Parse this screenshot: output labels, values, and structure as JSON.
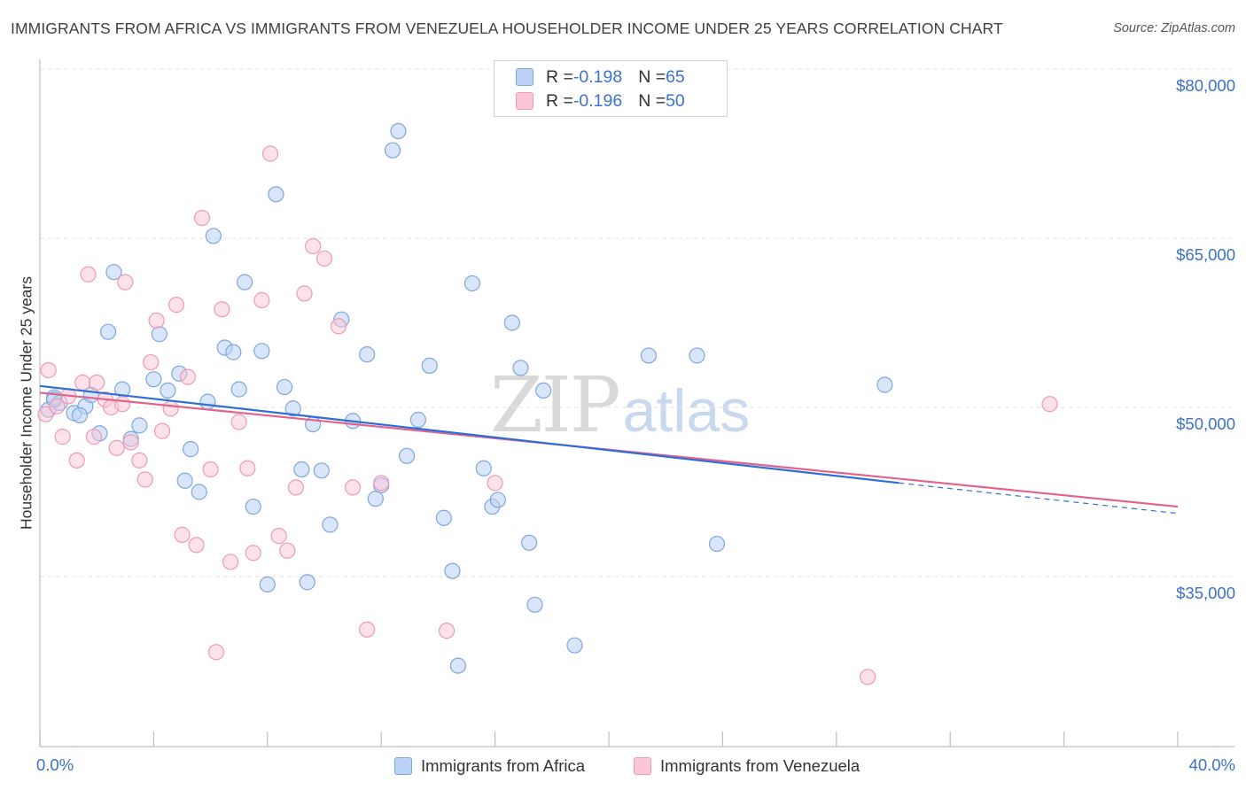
{
  "title": "IMMIGRANTS FROM AFRICA VS IMMIGRANTS FROM VENEZUELA HOUSEHOLDER INCOME UNDER 25 YEARS CORRELATION CHART",
  "source": "Source: ZipAtlas.com",
  "watermark": {
    "zip": "ZIP",
    "atlas": "atlas"
  },
  "legend_top": [
    {
      "r_label": "R = ",
      "r_value": "-0.198",
      "n_label": "N = ",
      "n_value": "65"
    },
    {
      "r_label": "R = ",
      "r_value": "-0.196",
      "n_label": "N = ",
      "n_value": "50"
    }
  ],
  "colors": {
    "africa_fill": "#b9d2f6",
    "africa_stroke": "#7ea6de",
    "africa_line": "#2d6fd3",
    "venezuela_fill": "#fbc6d6",
    "venezuela_stroke": "#ee9ab4",
    "venezuela_line": "#e2648e",
    "tick_text": "#3c72c8",
    "grid": "#e3e3e3"
  },
  "chart_data": {
    "type": "scatter",
    "title": "IMMIGRANTS FROM AFRICA VS IMMIGRANTS FROM VENEZUELA HOUSEHOLDER INCOME UNDER 25 YEARS CORRELATION CHART",
    "xlabel": "",
    "ylabel": "Householder Income Under 25 years",
    "xlim": [
      0,
      40
    ],
    "ylim": [
      20000,
      83000
    ],
    "x_tick_labels": [
      "0.0%",
      "40.0%"
    ],
    "y_ticks": [
      35000,
      50000,
      65000,
      80000
    ],
    "y_tick_labels": [
      "$35,000",
      "$50,000",
      "$65,000",
      "$80,000"
    ],
    "grid": true,
    "legend_position": "top-center",
    "series": [
      {
        "name": "Immigrants from Africa",
        "r": -0.198,
        "n": 65,
        "trend": {
          "x": [
            0,
            30.2
          ],
          "y": [
            51900,
            43300
          ],
          "dashed_to": [
            40,
            40600
          ]
        },
        "points": [
          [
            0.3,
            49800
          ],
          [
            0.5,
            50900
          ],
          [
            0.7,
            50400
          ],
          [
            1.2,
            49500
          ],
          [
            1.6,
            50100
          ],
          [
            1.8,
            51100
          ],
          [
            2.1,
            47700
          ],
          [
            2.4,
            56700
          ],
          [
            2.6,
            62000
          ],
          [
            2.9,
            51600
          ],
          [
            3.2,
            47200
          ],
          [
            3.5,
            48400
          ],
          [
            4.0,
            52500
          ],
          [
            4.2,
            56500
          ],
          [
            4.5,
            51500
          ],
          [
            4.9,
            53000
          ],
          [
            5.1,
            43500
          ],
          [
            5.3,
            46300
          ],
          [
            5.6,
            42500
          ],
          [
            5.9,
            50500
          ],
          [
            6.1,
            65200
          ],
          [
            6.5,
            55300
          ],
          [
            6.8,
            54900
          ],
          [
            7.0,
            51600
          ],
          [
            7.2,
            61100
          ],
          [
            7.5,
            41200
          ],
          [
            7.8,
            55000
          ],
          [
            8.0,
            34300
          ],
          [
            8.3,
            68900
          ],
          [
            8.6,
            51800
          ],
          [
            8.9,
            49900
          ],
          [
            9.2,
            44500
          ],
          [
            9.4,
            34500
          ],
          [
            9.6,
            48500
          ],
          [
            9.9,
            44400
          ],
          [
            10.2,
            39600
          ],
          [
            10.6,
            57800
          ],
          [
            11.0,
            48800
          ],
          [
            11.5,
            54700
          ],
          [
            11.8,
            41900
          ],
          [
            12.0,
            43100
          ],
          [
            12.4,
            72800
          ],
          [
            12.6,
            74500
          ],
          [
            12.9,
            45700
          ],
          [
            13.3,
            48900
          ],
          [
            13.7,
            53700
          ],
          [
            14.2,
            40200
          ],
          [
            14.5,
            35500
          ],
          [
            14.7,
            27100
          ],
          [
            15.2,
            61000
          ],
          [
            15.6,
            44600
          ],
          [
            15.9,
            41200
          ],
          [
            16.1,
            41800
          ],
          [
            16.6,
            57500
          ],
          [
            16.9,
            53500
          ],
          [
            17.2,
            38000
          ],
          [
            17.4,
            32500
          ],
          [
            17.7,
            51500
          ],
          [
            18.8,
            28900
          ],
          [
            21.4,
            54600
          ],
          [
            23.1,
            54600
          ],
          [
            23.8,
            37900
          ],
          [
            29.7,
            52000
          ],
          [
            0.5,
            50700
          ],
          [
            1.4,
            49300
          ]
        ]
      },
      {
        "name": "Immigrants from Venezuela",
        "r": -0.196,
        "n": 50,
        "trend": {
          "x": [
            0,
            40
          ],
          "y": [
            51300,
            41200
          ]
        },
        "points": [
          [
            0.2,
            49400
          ],
          [
            0.3,
            53300
          ],
          [
            0.6,
            50100
          ],
          [
            0.8,
            47400
          ],
          [
            1.0,
            51000
          ],
          [
            1.3,
            45300
          ],
          [
            1.5,
            52200
          ],
          [
            1.7,
            61800
          ],
          [
            1.9,
            47400
          ],
          [
            2.0,
            52200
          ],
          [
            2.3,
            50700
          ],
          [
            2.5,
            50000
          ],
          [
            2.7,
            46400
          ],
          [
            2.9,
            50300
          ],
          [
            3.0,
            61100
          ],
          [
            3.2,
            46900
          ],
          [
            3.5,
            45300
          ],
          [
            3.7,
            43600
          ],
          [
            3.9,
            54000
          ],
          [
            4.1,
            57700
          ],
          [
            4.3,
            47900
          ],
          [
            4.6,
            49900
          ],
          [
            4.8,
            59100
          ],
          [
            5.0,
            38700
          ],
          [
            5.2,
            52700
          ],
          [
            5.5,
            37800
          ],
          [
            5.7,
            66800
          ],
          [
            6.0,
            44500
          ],
          [
            6.2,
            28300
          ],
          [
            6.4,
            58700
          ],
          [
            6.7,
            36300
          ],
          [
            7.0,
            48700
          ],
          [
            7.3,
            44600
          ],
          [
            7.5,
            37100
          ],
          [
            7.8,
            59500
          ],
          [
            8.1,
            72500
          ],
          [
            8.4,
            38600
          ],
          [
            8.7,
            37300
          ],
          [
            9.0,
            42900
          ],
          [
            9.3,
            60100
          ],
          [
            9.6,
            64300
          ],
          [
            10.0,
            63200
          ],
          [
            10.5,
            57200
          ],
          [
            11.0,
            42900
          ],
          [
            11.5,
            30300
          ],
          [
            12.0,
            43300
          ],
          [
            14.3,
            30200
          ],
          [
            16.0,
            43300
          ],
          [
            29.1,
            26100
          ],
          [
            35.5,
            50300
          ]
        ]
      }
    ]
  },
  "bottom_legend": [
    "Immigrants from Africa",
    "Immigrants from Venezuela"
  ]
}
